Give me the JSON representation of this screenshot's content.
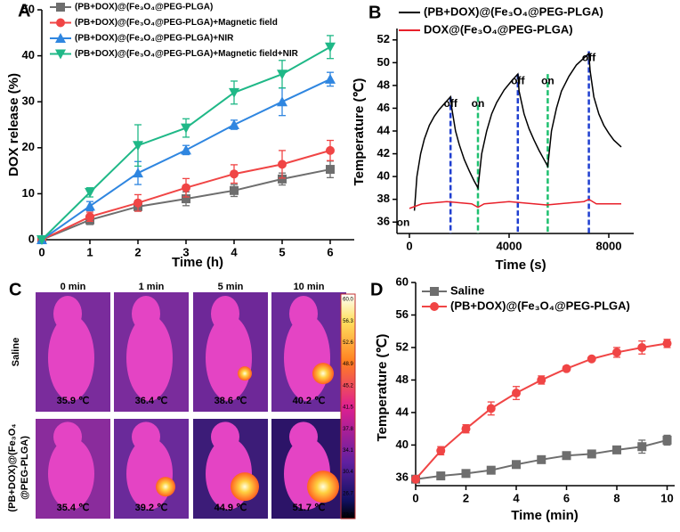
{
  "panel_labels": [
    "A",
    "B",
    "C",
    "D"
  ],
  "chart_data": [
    {
      "type": "line",
      "xlabel": "Time (h)",
      "ylabel": "DOX release (%)",
      "x": [
        0,
        1,
        2,
        3,
        4,
        5,
        6
      ],
      "xlim": [
        0,
        6.5
      ],
      "xticks": [
        0,
        1,
        2,
        3,
        4,
        5,
        6
      ],
      "ylim": [
        0,
        50
      ],
      "yticks": [
        0,
        10,
        20,
        30,
        40,
        50
      ],
      "series": [
        {
          "name": "(PB+DOX)@(Fe₃O₄@PEG-PLGA)",
          "color": "#6e6e6e",
          "marker": "square",
          "values": [
            0,
            4.3,
            7.2,
            8.9,
            10.7,
            13.2,
            15.3
          ],
          "errors": [
            null,
            1,
            1,
            1.5,
            1.3,
            1.3,
            1.8
          ]
        },
        {
          "name": "(PB+DOX)@(Fe₃O₄@PEG-PLGA)+Magnetic field",
          "color": "#f04545",
          "marker": "circle",
          "values": [
            0,
            5,
            8,
            11.3,
            14.3,
            16.4,
            19.4
          ],
          "errors": [
            null,
            1,
            1.8,
            2,
            2,
            3,
            2.2
          ]
        },
        {
          "name": "(PB+DOX)@(Fe₃O₄@PEG-PLGA)+NIR",
          "color": "#2f86e0",
          "marker": "triangle-up",
          "values": [
            0,
            7.3,
            14.5,
            19.5,
            25,
            30,
            34.9
          ],
          "errors": [
            null,
            1,
            2.5,
            1,
            1,
            3,
            1.5
          ]
        },
        {
          "name": "(PB+DOX)@(Fe₃O₄@PEG-PLGA)+Magnetic field+NIR",
          "color": "#1fb887",
          "marker": "triangle-down",
          "values": [
            0,
            10.3,
            20.5,
            24.3,
            32,
            36,
            41.9
          ],
          "errors": [
            null,
            1,
            4.5,
            2,
            2.5,
            3,
            2.5
          ]
        }
      ]
    },
    {
      "type": "line",
      "xlabel": "Time (s)",
      "ylabel": "Temperature (℃)",
      "xlim": [
        -500,
        9000
      ],
      "xticks": [
        0,
        4000,
        8000
      ],
      "ylim": [
        35,
        53
      ],
      "yticks": [
        36,
        38,
        40,
        42,
        44,
        46,
        48,
        50,
        52
      ],
      "series": [
        {
          "name": "(PB+DOX)@(Fe₃O₄@PEG-PLGA)",
          "color": "#000000",
          "x": [
            200,
            300,
            450,
            600,
            800,
            1000,
            1200,
            1400,
            1650,
            1700,
            1850,
            2000,
            2200,
            2400,
            2600,
            2750,
            2900,
            3100,
            3300,
            3500,
            3800,
            4100,
            4350,
            4400,
            4600,
            4800,
            5000,
            5200,
            5400,
            5550,
            5700,
            5900,
            6100,
            6400,
            6700,
            7000,
            7200,
            7250,
            7400,
            7600,
            7800,
            8000,
            8200,
            8500
          ],
          "values": [
            37,
            40,
            42,
            43.3,
            44.5,
            45.3,
            45.9,
            46.4,
            47,
            46,
            44,
            42.8,
            41.5,
            40.5,
            39.6,
            39,
            42,
            44,
            45.5,
            46.5,
            47.6,
            48.4,
            49,
            47.5,
            45.5,
            44.2,
            43.2,
            42.3,
            41.5,
            40.9,
            44,
            46,
            47.5,
            48.8,
            49.8,
            50.4,
            50.8,
            49.3,
            47,
            45.5,
            44.5,
            43.8,
            43.2,
            42.6
          ]
        },
        {
          "name": "DOX@(Fe₃O₄@PEG-PLGA)",
          "color": "#e8202a",
          "x": [
            0,
            500,
            1000,
            1500,
            2000,
            2500,
            2750,
            3000,
            3500,
            4000,
            4500,
            5000,
            5500,
            6000,
            6500,
            7000,
            7200,
            7500,
            8000,
            8500
          ],
          "values": [
            37.2,
            37.6,
            37.7,
            37.8,
            37.7,
            37.6,
            37.3,
            37.6,
            37.7,
            37.8,
            37.7,
            37.6,
            37.5,
            37.6,
            37.7,
            37.8,
            38,
            37.6,
            37.6,
            37.6
          ]
        }
      ],
      "annotations": [
        {
          "text": "off",
          "x": 1650,
          "y": 47,
          "color": "#1f3fd0",
          "dashed_line": true
        },
        {
          "text": "on",
          "x": 2750,
          "y": 47,
          "color": "#1fc070",
          "dashed_line": true
        },
        {
          "text": "off",
          "x": 4350,
          "y": 49,
          "color": "#1f3fd0",
          "dashed_line": true
        },
        {
          "text": "on",
          "x": 5550,
          "y": 49,
          "color": "#1fc070",
          "dashed_line": true
        },
        {
          "text": "off",
          "x": 7200,
          "y": 51,
          "color": "#1f3fd0",
          "dashed_line": true
        },
        {
          "text": "on",
          "x": -250,
          "y": 37,
          "color": "#1fc070",
          "dashed_line": false
        }
      ]
    },
    {
      "type": "line",
      "xlabel": "Time (min)",
      "ylabel": "Temperature (℃)",
      "x": [
        0,
        1,
        2,
        3,
        4,
        5,
        6,
        7,
        8,
        9,
        10
      ],
      "xlim": [
        0,
        10.3
      ],
      "xticks": [
        0,
        2,
        4,
        6,
        8,
        10
      ],
      "ylim": [
        35,
        60
      ],
      "yticks": [
        36,
        40,
        44,
        48,
        52,
        56,
        60
      ],
      "series": [
        {
          "name": "Saline",
          "color": "#6e6e6e",
          "marker": "square",
          "values": [
            35.8,
            36.2,
            36.5,
            36.9,
            37.6,
            38.2,
            38.7,
            38.9,
            39.4,
            39.8,
            40.6
          ],
          "errors": [
            0.2,
            0.2,
            0.2,
            0.2,
            0.2,
            0.3,
            0.4,
            0.4,
            0.3,
            0.8,
            0.6
          ]
        },
        {
          "name": "(PB+DOX)@(Fe₃O₄@PEG-PLGA)",
          "color": "#f04545",
          "marker": "circle",
          "values": [
            35.8,
            39.3,
            42,
            44.5,
            46.4,
            48,
            49.4,
            50.6,
            51.4,
            52,
            52.5
          ],
          "errors": [
            0.2,
            0.5,
            0.5,
            0.8,
            0.8,
            0.5,
            0.3,
            0.2,
            0.6,
            0.8,
            0.5
          ]
        }
      ]
    }
  ],
  "thermal_images": {
    "columns": [
      "0 min",
      "1 min",
      "5 min",
      "10 min"
    ],
    "rows": [
      {
        "label": [
          "Saline"
        ],
        "temperatures": [
          "35.9 ℃",
          "36.4 ℃",
          "38.6 ℃",
          "40.2 ℃"
        ]
      },
      {
        "label": [
          "(PB+DOX)@(Fe₃O₄",
          "@PEG-PLGA)"
        ],
        "temperatures": [
          "35.4 ℃",
          "39.2 ℃",
          "44.9 ℃",
          "51.7 ℃"
        ]
      }
    ],
    "colorbar_labels": [
      "60.0",
      "56.3",
      "52.6",
      "48.9",
      "45.2",
      "41.5",
      "37.8",
      "34.1",
      "30.4",
      "26.7",
      "23.0"
    ]
  }
}
